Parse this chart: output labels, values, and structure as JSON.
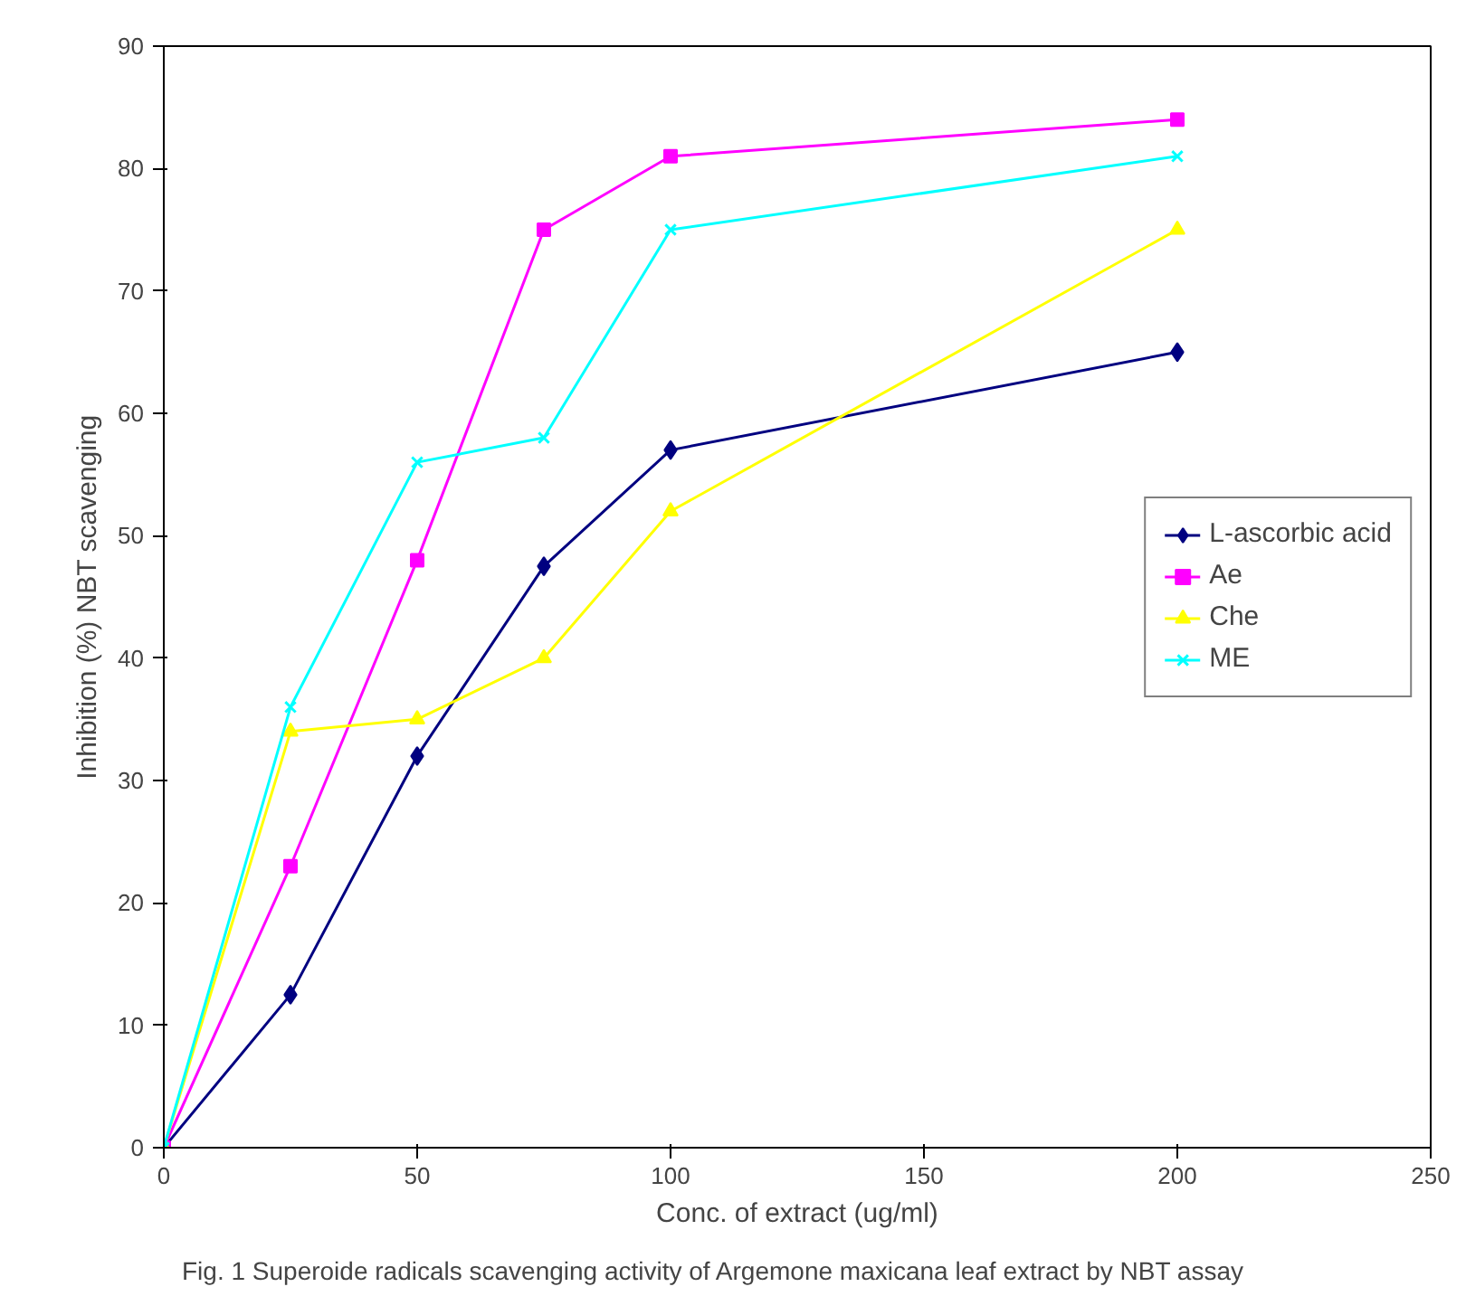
{
  "chart_data": {
    "type": "line",
    "xlabel": "Conc. of extract (ug/ml)",
    "ylabel": "Inhibition (%) NBT scavenging",
    "x": [
      0,
      25,
      50,
      75,
      100,
      200
    ],
    "series": [
      {
        "name": "L-ascorbic acid",
        "color": "#000080",
        "marker": "diamond",
        "values": [
          0,
          12.5,
          32,
          47.5,
          57,
          65
        ]
      },
      {
        "name": "Ae",
        "color": "#ff00ff",
        "marker": "square",
        "values": [
          0,
          23,
          48,
          75,
          81,
          84
        ]
      },
      {
        "name": "Che",
        "color": "#ffff00",
        "marker": "triangle",
        "values": [
          0,
          34,
          35,
          40,
          52,
          75
        ]
      },
      {
        "name": "ME",
        "color": "#00ffff",
        "marker": "cross",
        "values": [
          0,
          36,
          56,
          58,
          75,
          81
        ]
      }
    ],
    "xlim": [
      0,
      250
    ],
    "xticks": [
      0,
      50,
      100,
      150,
      200,
      250
    ],
    "ylim": [
      0,
      90
    ],
    "yticks": [
      0,
      10,
      20,
      30,
      40,
      50,
      60,
      70,
      80,
      90
    ],
    "grid": false,
    "legend": "right",
    "line_style": "solid",
    "annotations": [
      "Fig. 1 Superoide radicals scavenging activity of Argemone maxicana leaf extract by NBT assay"
    ]
  }
}
